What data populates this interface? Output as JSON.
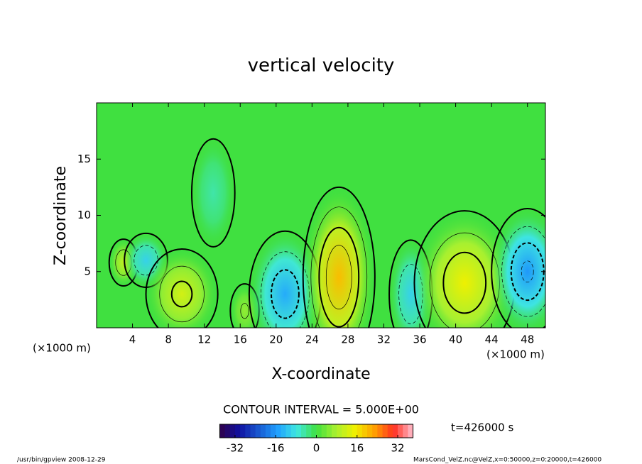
{
  "chart_data": {
    "type": "contour",
    "title": "vertical velocity",
    "xlabel": "X-coordinate",
    "ylabel": "Z-coordinate",
    "x_unit": "(×1000 m)",
    "z_unit": "(×1000 m)",
    "xlim": [
      0,
      50
    ],
    "xticks": [
      4,
      8,
      12,
      16,
      20,
      24,
      28,
      32,
      36,
      40,
      44,
      48
    ],
    "ylim": [
      0,
      20
    ],
    "yticks": [
      5,
      10,
      15
    ],
    "contour_interval_label": "CONTOUR INTERVAL = 5.000E+00",
    "contour_interval": 5,
    "clim": [
      -38,
      38
    ],
    "cticks": [
      -32,
      -16,
      0,
      16,
      32
    ],
    "time_label": "t=426000 s",
    "footer_left": "/usr/bin/gpview  2008-12-29",
    "footer_right": "MarsCond_VelZ.nc@VelZ,x=0:50000,z=0:20000,t=426000",
    "cells": [
      {
        "x": 3,
        "z": 5.8,
        "value": 10,
        "rx": 1,
        "rz": 1.3
      },
      {
        "x": 5.5,
        "z": 6,
        "value": -10,
        "rx": 1.5,
        "rz": 1.5
      },
      {
        "x": 9.5,
        "z": 3,
        "value": 12,
        "rx": 2.5,
        "rz": 2.5
      },
      {
        "x": 16.5,
        "z": 1.5,
        "value": 6,
        "rx": 1,
        "rz": 1.5
      },
      {
        "x": 21,
        "z": 3,
        "value": -14,
        "rx": 2.5,
        "rz": 3.5
      },
      {
        "x": 27,
        "z": 4.5,
        "value": 20,
        "rx": 2.5,
        "rz": 5
      },
      {
        "x": 35,
        "z": 3,
        "value": -10,
        "rx": 1.5,
        "rz": 3
      },
      {
        "x": 41,
        "z": 4,
        "value": 15,
        "rx": 3.5,
        "rz": 4
      },
      {
        "x": 48,
        "z": 5,
        "value": -16,
        "rx": 2.5,
        "rz": 3.5
      },
      {
        "x": 13,
        "z": 12,
        "value": -5,
        "rx": 1.5,
        "rz": 3
      }
    ]
  }
}
